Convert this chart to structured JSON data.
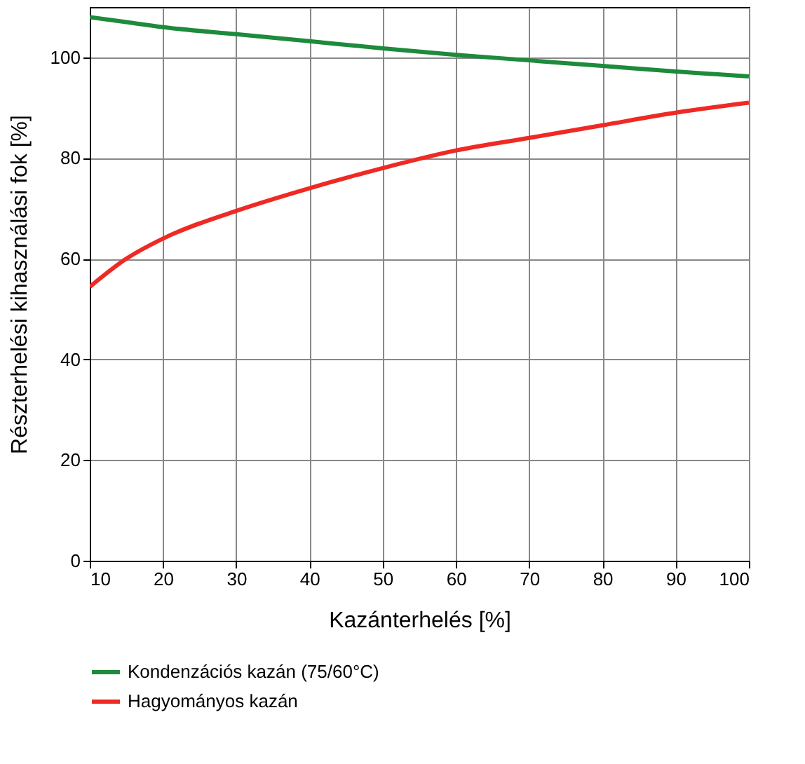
{
  "chart_data": {
    "type": "line",
    "xlabel": "Kazánterhelés [%]",
    "ylabel": "Részterhelési kihasználási fok [%]",
    "x": [
      10,
      15,
      20,
      30,
      40,
      50,
      60,
      70,
      80,
      90,
      100
    ],
    "xlim": [
      10,
      100
    ],
    "xticks": [
      10,
      20,
      30,
      40,
      50,
      60,
      70,
      80,
      90,
      100
    ],
    "ylim": [
      0,
      110
    ],
    "yticks": [
      0,
      20,
      40,
      60,
      80,
      100
    ],
    "grid": true,
    "legend": "bottom",
    "marker": "none",
    "line_style": "solid",
    "series": [
      {
        "name": "Kondenzációs kazán (75/60°C)",
        "color": "#1e8a3c",
        "values": [
          108,
          107,
          106,
          104.6,
          103.2,
          101.8,
          100.5,
          99.4,
          98.3,
          97.2,
          96.2
        ]
      },
      {
        "name": "Hagyományos kazán",
        "color": "#ee2a24",
        "values": [
          54.4,
          60,
          64,
          69.5,
          74,
          78,
          81.5,
          84,
          86.5,
          89,
          91
        ]
      }
    ]
  }
}
